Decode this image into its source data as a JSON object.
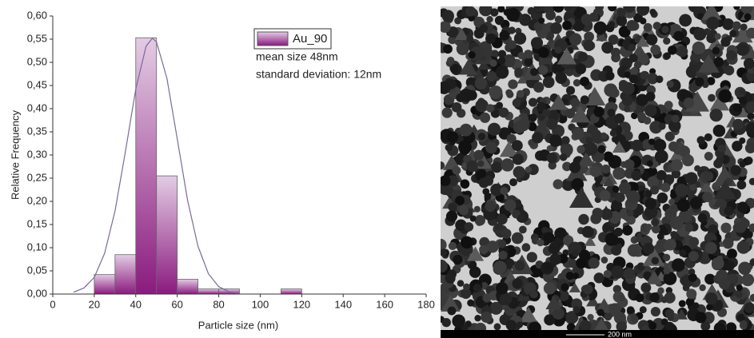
{
  "chart_data": {
    "type": "histogram",
    "xlabel": "Particle size (nm)",
    "ylabel": "Relative Frequency",
    "bins": [
      20,
      30,
      40,
      50,
      60,
      70,
      80,
      90,
      100,
      110,
      120
    ],
    "series": [
      {
        "name": "Au_90",
        "color": "#8b1a7e",
        "values": [
          0.042,
          0.085,
          0.553,
          0.255,
          0.032,
          0.011,
          0.011,
          0,
          0,
          0.011
        ]
      }
    ],
    "fit_curve": {
      "color": "#7a6a9a",
      "x": [
        10,
        15,
        20,
        25,
        30,
        35,
        40,
        45,
        48,
        50,
        55,
        60,
        65,
        70,
        75,
        80,
        85,
        90
      ],
      "values": [
        0.004,
        0.013,
        0.036,
        0.088,
        0.179,
        0.307,
        0.442,
        0.535,
        0.552,
        0.544,
        0.466,
        0.335,
        0.202,
        0.103,
        0.044,
        0.016,
        0.005,
        0.001
      ]
    },
    "annotations": [
      "mean size  48nm",
      "standard deviation: 12nm"
    ],
    "xlim": [
      0,
      180
    ],
    "xticks": [
      0,
      20,
      40,
      60,
      80,
      100,
      120,
      140,
      160,
      180
    ],
    "ylim": [
      0,
      0.6
    ],
    "yticks": [
      {
        "value": 0,
        "label": "0,00"
      },
      {
        "value": 0.05,
        "label": "0,05"
      },
      {
        "value": 0.1,
        "label": "0,10"
      },
      {
        "value": 0.15,
        "label": "0,15"
      },
      {
        "value": 0.2,
        "label": "0,20"
      },
      {
        "value": 0.25,
        "label": "0,25"
      },
      {
        "value": 0.3,
        "label": "0,30"
      },
      {
        "value": 0.35,
        "label": "0,35"
      },
      {
        "value": 0.4,
        "label": "0,40"
      },
      {
        "value": 0.45,
        "label": "0,45"
      },
      {
        "value": 0.5,
        "label": "0,50"
      },
      {
        "value": 0.55,
        "label": "0,55"
      },
      {
        "value": 0.6,
        "label": "0,60"
      }
    ]
  },
  "image": {
    "scale_label": "200 nm"
  }
}
